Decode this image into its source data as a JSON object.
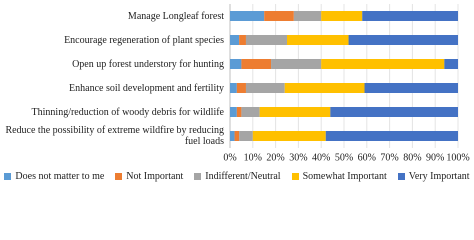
{
  "chart_data": {
    "type": "stacked-bar-horizontal",
    "categories": [
      "Manage Longleaf forest",
      "Encourage regeneration of plant species",
      "Open up forest understory for hunting",
      "Enhance soil development and fertility",
      "Thinning/reduction of woody debris for wildlife",
      "Reduce the possibility of extreme wildfire by reducing fuel loads"
    ],
    "series": [
      {
        "name": "Does not matter to me",
        "color": "#5b9bd5",
        "values": [
          15,
          4,
          5,
          3,
          3,
          2
        ]
      },
      {
        "name": "Not Important",
        "color": "#ed7d31",
        "values": [
          13,
          3,
          13,
          4,
          2,
          2
        ]
      },
      {
        "name": "Indifferent/Neutral",
        "color": "#a5a5a5",
        "values": [
          12,
          18,
          22,
          17,
          8,
          6
        ]
      },
      {
        "name": "Somewhat Important",
        "color": "#ffc000",
        "values": [
          18,
          27,
          54,
          35,
          31,
          32
        ]
      },
      {
        "name": "Very Important",
        "color": "#4472c4",
        "values": [
          42,
          48,
          6,
          41,
          56,
          58
        ]
      }
    ],
    "xlim": [
      0,
      100
    ],
    "xticks": [
      {
        "value": 0,
        "label": "0%"
      },
      {
        "value": 10,
        "label": "10%"
      },
      {
        "value": 20,
        "label": "20%"
      },
      {
        "value": 30,
        "label": "30%"
      },
      {
        "value": 40,
        "label": "40%"
      },
      {
        "value": 50,
        "label": "50%"
      },
      {
        "value": 60,
        "label": "60%"
      },
      {
        "value": 70,
        "label": "70%"
      },
      {
        "value": 80,
        "label": "80%"
      },
      {
        "value": 90,
        "label": "90%"
      },
      {
        "value": 100,
        "label": "100%"
      }
    ],
    "grid": true,
    "legend": "bottom"
  }
}
